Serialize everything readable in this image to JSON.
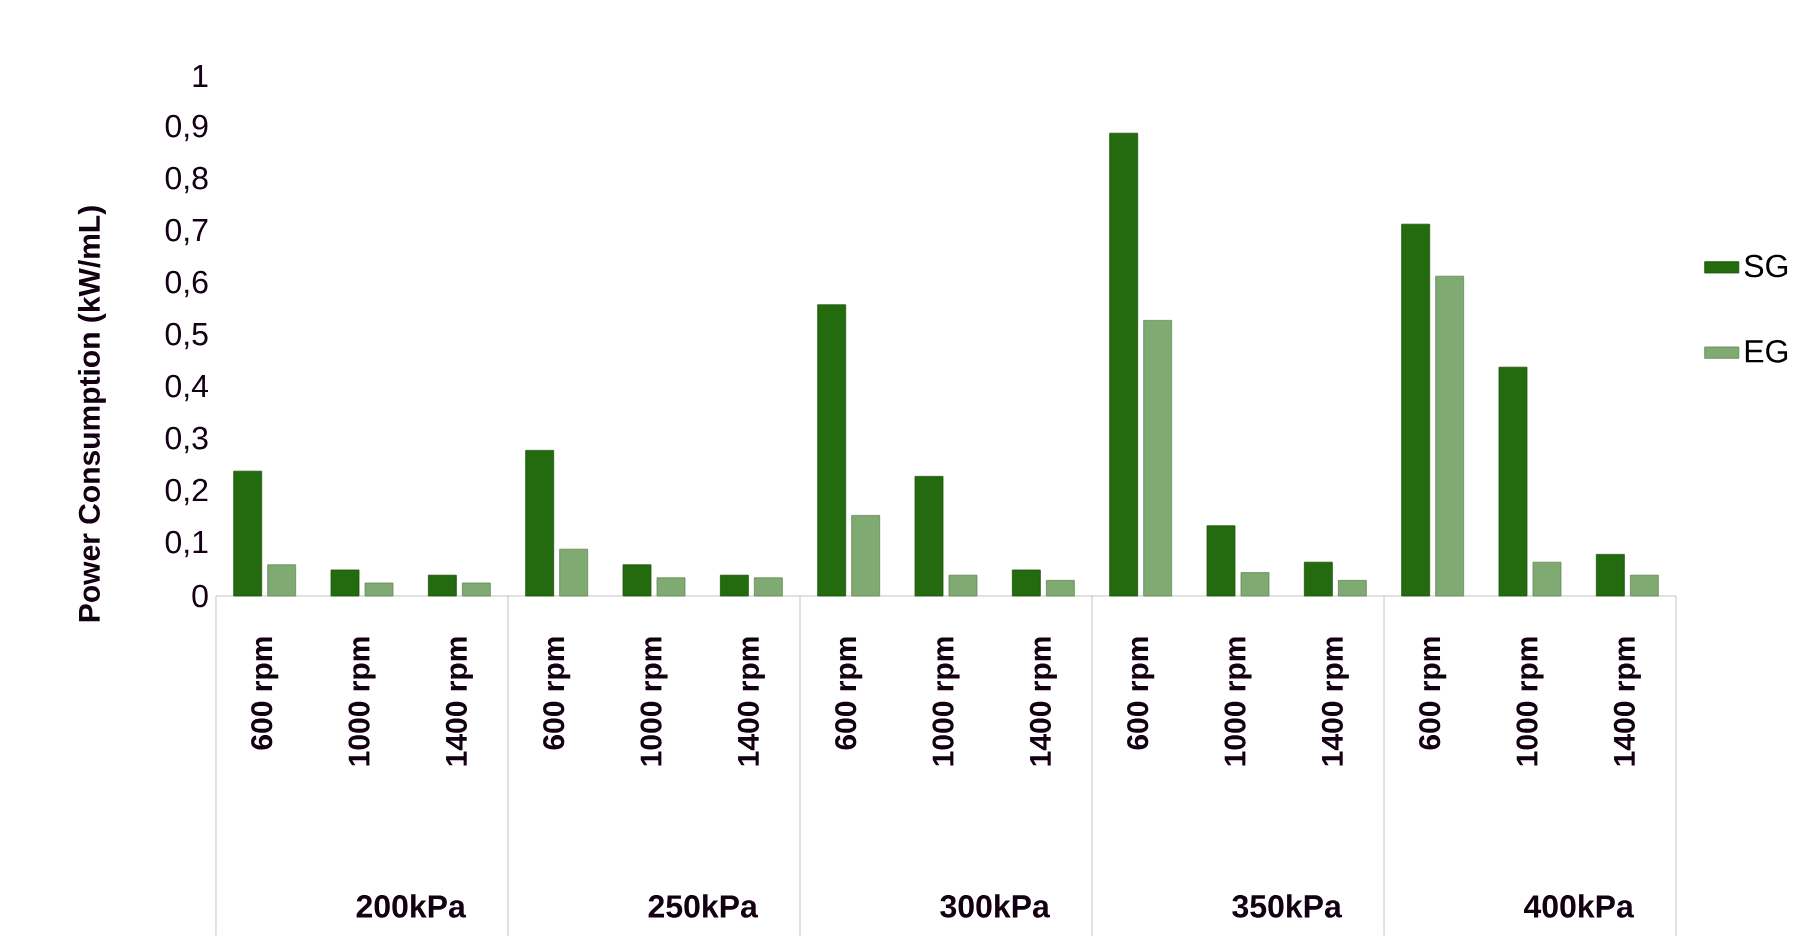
{
  "chart_data": {
    "type": "bar",
    "ylabel": "Power Consumption (kW/mL)",
    "categories": [
      "600 rpm",
      "1000 rpm",
      "1400 rpm",
      "600 rpm",
      "1000 rpm",
      "1400 rpm",
      "600 rpm",
      "1000 rpm",
      "1400 rpm",
      "600 rpm",
      "1000 rpm",
      "1400 rpm",
      "600 rpm",
      "1000 rpm",
      "1400 rpm"
    ],
    "annotations": [
      "200kPa",
      "250kPa",
      "300kPa",
      "350kPa",
      "400kPa"
    ],
    "series": [
      {
        "name": "SG",
        "color": "#236b0e",
        "values": [
          0.24,
          0.05,
          0.04,
          0.28,
          0.06,
          0.04,
          0.56,
          0.23,
          0.05,
          0.89,
          0.135,
          0.065,
          0.715,
          0.44,
          0.08
        ]
      },
      {
        "name": "EG",
        "color": "#7faa72",
        "values": [
          0.06,
          0.025,
          0.025,
          0.09,
          0.035,
          0.035,
          0.155,
          0.04,
          0.03,
          0.53,
          0.045,
          0.03,
          0.615,
          0.065,
          0.04
        ]
      }
    ],
    "ylim": [
      0,
      1
    ],
    "yticks": [
      0,
      {
        "value": 0.1,
        "label": "0,1"
      },
      {
        "value": 0.2,
        "label": "0,2"
      },
      {
        "value": 0.3,
        "label": "0,3"
      },
      {
        "value": 0.4,
        "label": "0,4"
      },
      {
        "value": 0.5,
        "label": "0,5"
      },
      {
        "value": 0.6,
        "label": "0,6"
      },
      {
        "value": 0.7,
        "label": "0,7"
      },
      {
        "value": 0.8,
        "label": "0,8"
      },
      {
        "value": 0.9,
        "label": "0,9"
      },
      1
    ],
    "grid": false,
    "legend": "right"
  }
}
